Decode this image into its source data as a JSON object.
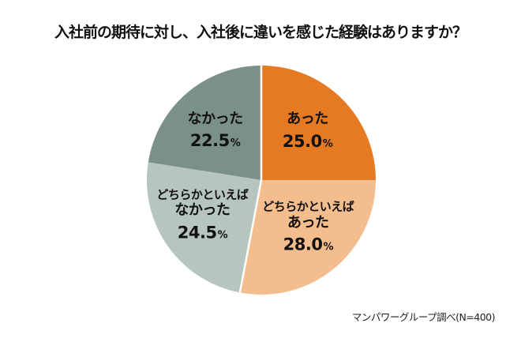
{
  "title": "入社前の期待に対し、入社後に違いを感じた経験はありますか？",
  "source_note": "マンパワーグループ調べ(N=400)",
  "chart_data": {
    "type": "pie",
    "title": "入社前の期待に対し、入社後に違いを感じた経験はありますか？",
    "unit": "%",
    "start_angle_deg": 0,
    "direction": "clockwise",
    "legend": "none",
    "background_color": "#ffffff",
    "text_color": "#111111",
    "divider_color": "#ffffff",
    "slices": [
      {
        "label": "あった",
        "label_lines": [
          "あった"
        ],
        "value": 25.0,
        "group": "あった",
        "color": "#e67a22"
      },
      {
        "label": "どちらかといえばあった",
        "label_lines": [
          "どちらかといえば",
          "あった"
        ],
        "value": 28.0,
        "group": "あった",
        "color": "#f4bd8e"
      },
      {
        "label": "どちらかといえばなかった",
        "label_lines": [
          "どちらかといえば",
          "なかった"
        ],
        "value": 24.5,
        "group": "なかった",
        "color": "#b6c5bd"
      },
      {
        "label": "なかった",
        "label_lines": [
          "なかった"
        ],
        "value": 22.5,
        "group": "なかった",
        "color": "#7b9187"
      }
    ]
  }
}
